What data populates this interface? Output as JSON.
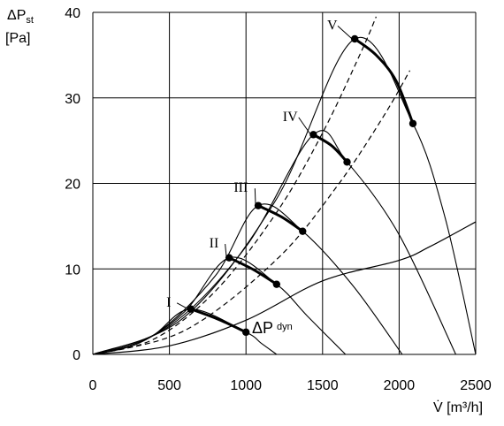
{
  "chart_data": {
    "type": "line",
    "ylabel_main": "ΔP",
    "ylabel_sub": "st",
    "ylabel_unit": "[Pa]",
    "xlabel": "V̇ [m³/h]",
    "xlim": [
      0,
      2500
    ],
    "ylim": [
      0,
      40
    ],
    "x_ticks": [
      0,
      500,
      1000,
      1500,
      2000,
      2500
    ],
    "y_ticks": [
      0,
      10,
      20,
      30,
      40
    ],
    "grid": true,
    "dyn_label_main": "ΔP",
    "dyn_label_sub": "dyn",
    "fan_curves": [
      {
        "name": "I",
        "thin": [
          [
            0,
            0
          ],
          [
            200,
            0.8
          ],
          [
            400,
            2.3
          ],
          [
            640,
            5.3
          ],
          [
            1000,
            2.6
          ],
          [
            1100,
            1.3
          ],
          [
            1200,
            0
          ]
        ],
        "bold": [
          [
            640,
            5.3
          ],
          [
            820,
            4.1
          ],
          [
            1000,
            2.6
          ]
        ],
        "label_at": [
          480,
          5.6
        ]
      },
      {
        "name": "II",
        "thin": [
          [
            0,
            0
          ],
          [
            300,
            1.3
          ],
          [
            600,
            5.0
          ],
          [
            890,
            11.3
          ],
          [
            1200,
            8.2
          ],
          [
            1400,
            4.5
          ],
          [
            1650,
            0
          ]
        ],
        "bold": [
          [
            890,
            11.3
          ],
          [
            1050,
            9.9
          ],
          [
            1200,
            8.2
          ]
        ],
        "label_at": [
          760,
          12.5
        ]
      },
      {
        "name": "III",
        "thin": [
          [
            0,
            0
          ],
          [
            400,
            2.3
          ],
          [
            800,
            9.2
          ],
          [
            1080,
            17.4
          ],
          [
            1370,
            14.4
          ],
          [
            1700,
            8.0
          ],
          [
            2020,
            0
          ]
        ],
        "bold": [
          [
            1080,
            17.4
          ],
          [
            1230,
            16.1
          ],
          [
            1370,
            14.4
          ]
        ],
        "label_at": [
          920,
          19.0
        ]
      },
      {
        "name": "IV",
        "thin": [
          [
            0,
            0
          ],
          [
            500,
            3.3
          ],
          [
            1000,
            12.6
          ],
          [
            1440,
            25.7
          ],
          [
            1660,
            22.5
          ],
          [
            2000,
            14.0
          ],
          [
            2370,
            0
          ]
        ],
        "bold": [
          [
            1440,
            25.7
          ],
          [
            1560,
            24.4
          ],
          [
            1660,
            22.5
          ]
        ],
        "label_at": [
          1240,
          27.3
        ]
      },
      {
        "name": "V",
        "thin": [
          [
            0,
            0
          ],
          [
            600,
            4.4
          ],
          [
            1200,
            18.2
          ],
          [
            1710,
            36.9
          ],
          [
            2090,
            27.0
          ],
          [
            2300,
            16.0
          ],
          [
            2500,
            0
          ]
        ],
        "bold": [
          [
            1710,
            36.9
          ],
          [
            1850,
            35.0
          ],
          [
            1980,
            32.0
          ],
          [
            2090,
            27.0
          ]
        ],
        "label_at": [
          1530,
          38.0
        ]
      }
    ],
    "system_curves": [
      {
        "dashed": true,
        "points": [
          [
            0,
            0
          ],
          [
            400,
            1.8
          ],
          [
            800,
            7.4
          ],
          [
            1200,
            16.6
          ],
          [
            1500,
            25.9
          ],
          [
            1750,
            35.3
          ],
          [
            1850,
            39.5
          ]
        ]
      },
      {
        "dashed": true,
        "points": [
          [
            0,
            0
          ],
          [
            600,
            2.8
          ],
          [
            1200,
            11.1
          ],
          [
            1600,
            19.8
          ],
          [
            1900,
            27.9
          ],
          [
            2070,
            33.2
          ]
        ]
      },
      {
        "dashed": false,
        "points": [
          [
            0,
            0
          ],
          [
            500,
            1.0
          ],
          [
            1000,
            4.0
          ],
          [
            1500,
            8.6
          ],
          [
            2000,
            11.0
          ],
          [
            2200,
            12.6
          ],
          [
            2500,
            15.5
          ]
        ]
      }
    ]
  }
}
